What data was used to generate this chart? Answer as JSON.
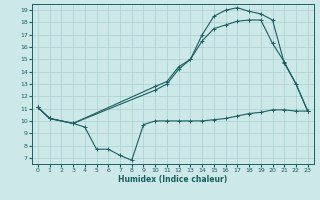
{
  "xlabel": "Humidex (Indice chaleur)",
  "bg_color": "#cce8e8",
  "grid_color": "#aacfcf",
  "line_color": "#1a6060",
  "xlim": [
    -0.5,
    23.5
  ],
  "ylim": [
    6.5,
    19.5
  ],
  "xticks": [
    0,
    1,
    2,
    3,
    4,
    5,
    6,
    7,
    8,
    9,
    10,
    11,
    12,
    13,
    14,
    15,
    16,
    17,
    18,
    19,
    20,
    21,
    22,
    23
  ],
  "yticks": [
    7,
    8,
    9,
    10,
    11,
    12,
    13,
    14,
    15,
    16,
    17,
    18,
    19
  ],
  "line1_x": [
    0,
    1,
    3,
    4,
    5,
    6,
    7,
    8,
    9,
    10,
    11,
    12,
    13,
    14,
    15,
    16,
    17,
    18,
    19,
    20,
    21,
    22,
    23
  ],
  "line1_y": [
    11.1,
    10.2,
    9.8,
    9.5,
    7.7,
    7.7,
    7.2,
    6.8,
    9.7,
    10.0,
    10.0,
    10.0,
    10.0,
    10.0,
    10.1,
    10.2,
    10.4,
    10.6,
    10.7,
    10.9,
    10.9,
    10.8,
    10.8
  ],
  "line2_x": [
    0,
    1,
    3,
    10,
    11,
    12,
    13,
    14,
    15,
    16,
    17,
    18,
    19,
    20,
    21,
    22,
    23
  ],
  "line2_y": [
    11.1,
    10.2,
    9.8,
    12.8,
    13.2,
    14.4,
    15.0,
    16.5,
    17.5,
    17.8,
    18.1,
    18.2,
    18.2,
    16.3,
    14.8,
    13.0,
    10.8
  ],
  "line3_x": [
    0,
    1,
    3,
    10,
    11,
    12,
    13,
    14,
    15,
    16,
    17,
    18,
    19,
    20,
    21,
    22,
    23
  ],
  "line3_y": [
    11.1,
    10.2,
    9.8,
    12.5,
    13.0,
    14.2,
    15.0,
    17.0,
    18.5,
    19.0,
    19.2,
    18.9,
    18.7,
    18.2,
    14.7,
    13.0,
    10.8
  ]
}
